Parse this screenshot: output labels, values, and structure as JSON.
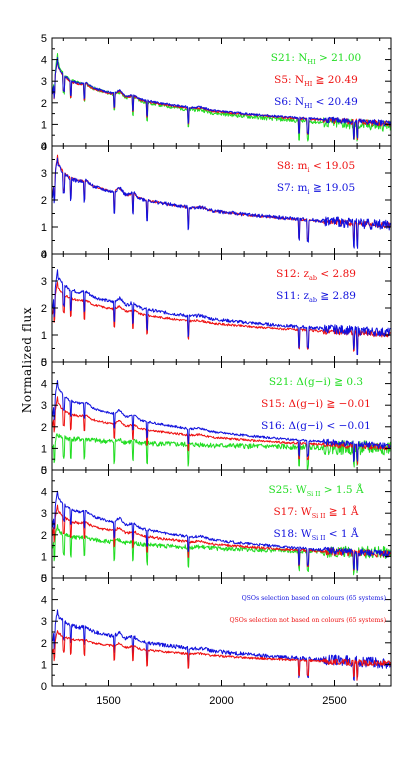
{
  "chart_data": {
    "type": "line",
    "ylabel": "Normalized flux",
    "xlim": [
      1250,
      2750
    ],
    "x_ticks": [
      1500,
      2000,
      2500
    ],
    "panels": [
      {
        "id": "p1",
        "ylim": [
          0,
          5
        ],
        "y_ticks": [
          0,
          1,
          2,
          3,
          4,
          5
        ],
        "legend": [
          {
            "base": "S21: N",
            "sub": "HI",
            "rest": " > 21.00",
            "color": "#22dd22"
          },
          {
            "base": "S5: N",
            "sub": "HI",
            "rest": " ≧ 20.49",
            "color": "#ee1111"
          },
          {
            "base": "S6: N",
            "sub": "HI",
            "rest": " < 20.49",
            "color": "#1111dd"
          }
        ],
        "series": [
          {
            "name": "S21",
            "color": "#22dd22",
            "peak": 4.3,
            "plateau": 2.1,
            "end": 0.85,
            "bump": 0.18,
            "noise": 0.09,
            "seed": 11,
            "order": 0
          },
          {
            "name": "S5",
            "color": "#ee1111",
            "peak": 4.05,
            "plateau": 2.2,
            "end": 0.98,
            "bump": 0.2,
            "noise": 0.05,
            "seed": 12,
            "order": 1
          },
          {
            "name": "S6",
            "color": "#1111dd",
            "peak": 4.1,
            "plateau": 2.25,
            "end": 1.0,
            "bump": 0.22,
            "noise": 0.05,
            "seed": 13,
            "order": 2
          }
        ]
      },
      {
        "id": "p2",
        "ylim": [
          0,
          4
        ],
        "y_ticks": [
          0,
          1,
          2,
          3,
          4
        ],
        "legend": [
          {
            "base": "S8: m",
            "sub": "i",
            "rest": " < 19.05",
            "color": "#ee1111"
          },
          {
            "base": "S7: m",
            "sub": "i",
            "rest": " ≧ 19.05",
            "color": "#1111dd"
          }
        ],
        "series": [
          {
            "name": "S8",
            "color": "#ee1111",
            "peak": 3.7,
            "plateau": 2.2,
            "end": 1.0,
            "bump": 0.2,
            "noise": 0.04,
            "seed": 21,
            "order": 0
          },
          {
            "name": "S7",
            "color": "#1111dd",
            "peak": 3.65,
            "plateau": 2.2,
            "end": 1.02,
            "bump": 0.22,
            "noise": 0.07,
            "seed": 22,
            "order": 1
          }
        ]
      },
      {
        "id": "p3",
        "ylim": [
          0,
          4
        ],
        "y_ticks": [
          0,
          1,
          2,
          3,
          4
        ],
        "legend": [
          {
            "base": "S12: z",
            "sub": "ab",
            "rest": " < 2.89",
            "color": "#ee1111"
          },
          {
            "base": "S11: z",
            "sub": "ab",
            "rest": " ≧ 2.89",
            "color": "#1111dd"
          }
        ],
        "series": [
          {
            "name": "S12",
            "color": "#ee1111",
            "peak": 3.0,
            "plateau": 1.9,
            "end": 0.98,
            "bump": 0.15,
            "noise": 0.04,
            "seed": 31,
            "order": 0
          },
          {
            "name": "S11",
            "color": "#1111dd",
            "peak": 3.4,
            "plateau": 2.2,
            "end": 1.05,
            "bump": 0.2,
            "noise": 0.06,
            "seed": 32,
            "order": 1
          }
        ]
      },
      {
        "id": "p4",
        "ylim": [
          0,
          5
        ],
        "y_ticks": [
          0,
          1,
          2,
          3,
          4,
          5
        ],
        "legend": [
          {
            "base": "S21: Δ(g−i) ≧ 0.3",
            "sub": "",
            "rest": "",
            "color": "#22dd22"
          },
          {
            "base": "S15: Δ(g−i) ≧ −0.01",
            "sub": "",
            "rest": "",
            "color": "#ee1111"
          },
          {
            "base": "S16: Δ(g−i) < −0.01",
            "sub": "",
            "rest": "",
            "color": "#1111dd"
          }
        ],
        "series": [
          {
            "name": "S21",
            "color": "#22dd22",
            "peak": 1.7,
            "plateau": 1.25,
            "end": 1.0,
            "bump": 0.08,
            "noise": 0.12,
            "seed": 41,
            "order": 0
          },
          {
            "name": "S15",
            "color": "#ee1111",
            "peak": 3.4,
            "plateau": 2.0,
            "end": 1.0,
            "bump": 0.2,
            "noise": 0.05,
            "seed": 42,
            "order": 1
          },
          {
            "name": "S16",
            "color": "#1111dd",
            "peak": 4.2,
            "plateau": 2.55,
            "end": 1.05,
            "bump": 0.25,
            "noise": 0.05,
            "seed": 43,
            "order": 2
          }
        ]
      },
      {
        "id": "p5",
        "ylim": [
          0,
          5
        ],
        "y_ticks": [
          0,
          1,
          2,
          3,
          4,
          5
        ],
        "legend": [
          {
            "base": "S25: W",
            "sub": "Si II",
            "rest": " > 1.5 Å",
            "color": "#22dd22"
          },
          {
            "base": "S17: W",
            "sub": "Si II",
            "rest": " ≧ 1 Å",
            "color": "#ee1111"
          },
          {
            "base": "S18: W",
            "sub": "Si II",
            "rest": " < 1 Å",
            "color": "#1111dd"
          }
        ],
        "series": [
          {
            "name": "S25",
            "color": "#22dd22",
            "peak": 2.4,
            "plateau": 1.5,
            "end": 1.15,
            "bump": 0.1,
            "noise": 0.1,
            "seed": 51,
            "order": 0
          },
          {
            "name": "S17",
            "color": "#ee1111",
            "peak": 3.4,
            "plateau": 2.1,
            "end": 1.05,
            "bump": 0.2,
            "noise": 0.06,
            "seed": 52,
            "order": 1
          },
          {
            "name": "S18",
            "color": "#1111dd",
            "peak": 4.1,
            "plateau": 2.6,
            "end": 1.05,
            "bump": 0.25,
            "noise": 0.06,
            "seed": 53,
            "order": 2
          }
        ]
      },
      {
        "id": "p6",
        "ylim": [
          0,
          5
        ],
        "y_ticks": [
          0,
          1,
          2,
          3,
          4,
          5
        ],
        "legend": [
          {
            "base": "QSOs selection based on colours (65 systems)",
            "sub": "",
            "rest": "",
            "color": "#1111dd",
            "small": true
          },
          {
            "base": "QSOs selection not based on colours (65 systems)",
            "sub": "",
            "rest": "",
            "color": "#ee1111",
            "small": true
          }
        ],
        "series": [
          {
            "name": "colour-selected",
            "color": "#1111dd",
            "peak": 3.5,
            "plateau": 2.4,
            "end": 1.0,
            "bump": 0.2,
            "noise": 0.09,
            "seed": 61,
            "order": 0
          },
          {
            "name": "not colour-selected",
            "color": "#ee1111",
            "peak": 2.6,
            "plateau": 1.95,
            "end": 1.0,
            "bump": 0.15,
            "noise": 0.05,
            "seed": 62,
            "order": 1
          }
        ]
      }
    ]
  }
}
